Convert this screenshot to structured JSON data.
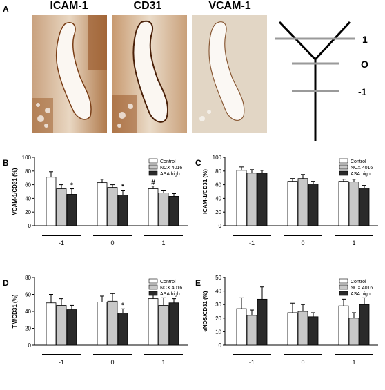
{
  "panel_a": {
    "label": "A",
    "images": [
      {
        "title": "ICAM-1"
      },
      {
        "title": "CD31"
      },
      {
        "title": "VCAM-1"
      }
    ],
    "diagram_labels": [
      "1",
      "O",
      "-1"
    ]
  },
  "legend": [
    "Control",
    "NCX 4016",
    "ASA high"
  ],
  "colors": {
    "control": "#ffffff",
    "ncx": "#c8c8c8",
    "asa": "#2a2a2a",
    "stain": "#8a4a20"
  },
  "chart_data": [
    {
      "panel": "B",
      "type": "bar",
      "ylabel": "VCAM-1/CD31 (%)",
      "ylim": [
        0,
        100
      ],
      "yticks": [
        "0",
        "20",
        "40",
        "60",
        "80",
        "100"
      ],
      "categories": [
        "-1",
        "0",
        "1"
      ],
      "series": [
        {
          "name": "Control",
          "values": [
            71,
            63,
            54
          ],
          "errors": [
            8,
            5,
            4
          ]
        },
        {
          "name": "NCX 4016",
          "values": [
            54,
            56,
            48
          ],
          "errors": [
            6,
            4,
            4
          ]
        },
        {
          "name": "ASA high",
          "values": [
            46,
            45,
            43
          ],
          "errors": [
            8,
            7,
            4
          ]
        }
      ],
      "annotations": [
        {
          "category": 0,
          "series": 2,
          "text": "*"
        },
        {
          "category": 1,
          "series": 2,
          "text": "*"
        },
        {
          "category": 2,
          "series": 0,
          "text": "#"
        }
      ]
    },
    {
      "panel": "C",
      "type": "bar",
      "ylabel": "ICAM-1/CD31 (%)",
      "ylim": [
        0,
        100
      ],
      "yticks": [
        "0",
        "20",
        "40",
        "60",
        "80",
        "100"
      ],
      "categories": [
        "-1",
        "0",
        "1"
      ],
      "series": [
        {
          "name": "Control",
          "values": [
            81,
            65,
            65
          ],
          "errors": [
            5,
            4,
            3
          ]
        },
        {
          "name": "NCX 4016",
          "values": [
            77,
            69,
            64
          ],
          "errors": [
            5,
            6,
            4
          ]
        },
        {
          "name": "ASA high",
          "values": [
            77,
            61,
            55
          ],
          "errors": [
            4,
            4,
            4
          ]
        }
      ],
      "annotations": []
    },
    {
      "panel": "D",
      "type": "bar",
      "ylabel": "TM/CD31 (%)",
      "ylim": [
        0,
        80
      ],
      "yticks": [
        "0",
        "20",
        "40",
        "60",
        "80"
      ],
      "categories": [
        "-1",
        "0",
        "1"
      ],
      "series": [
        {
          "name": "Control",
          "values": [
            50,
            51,
            55
          ],
          "errors": [
            10,
            7,
            7
          ]
        },
        {
          "name": "NCX 4016",
          "values": [
            47,
            52,
            47
          ],
          "errors": [
            8,
            9,
            9
          ]
        },
        {
          "name": "ASA high",
          "values": [
            42,
            38,
            50
          ],
          "errors": [
            5,
            5,
            5
          ]
        }
      ],
      "annotations": [
        {
          "category": 1,
          "series": 2,
          "text": "*"
        }
      ]
    },
    {
      "panel": "E",
      "type": "bar",
      "ylabel": "eNOS/CD31 (%)",
      "ylim": [
        0,
        50
      ],
      "yticks": [
        "0",
        "10",
        "20",
        "30",
        "40",
        "50"
      ],
      "categories": [
        "-1",
        "0",
        "1"
      ],
      "series": [
        {
          "name": "Control",
          "values": [
            27,
            24,
            29
          ],
          "errors": [
            8,
            7,
            5
          ]
        },
        {
          "name": "NCX 4016",
          "values": [
            22,
            25,
            20
          ],
          "errors": [
            4,
            5,
            4
          ]
        },
        {
          "name": "ASA high",
          "values": [
            34,
            21,
            30
          ],
          "errors": [
            9,
            3,
            5
          ]
        }
      ],
      "annotations": []
    }
  ]
}
